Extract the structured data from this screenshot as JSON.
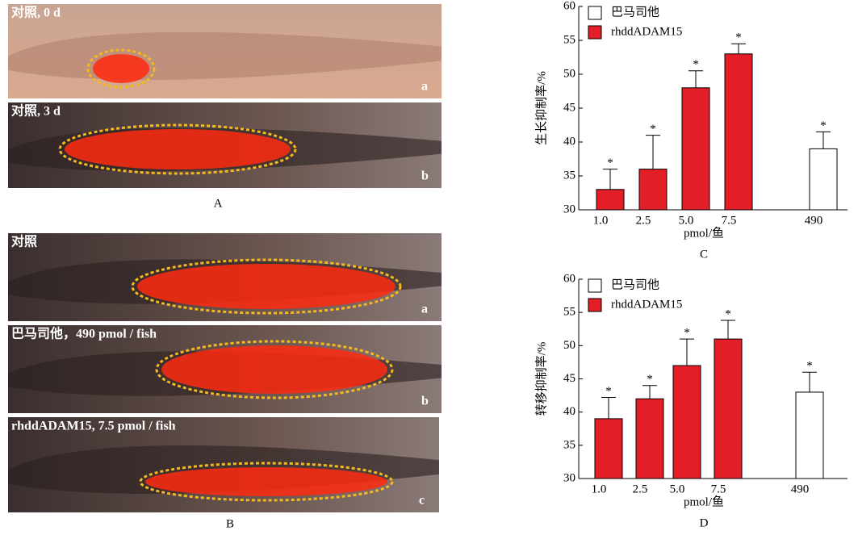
{
  "panels": [
    {
      "label": "A",
      "images": [
        {
          "caption": "对照, 0 d",
          "letter": "a"
        },
        {
          "caption": "对照, 3 d",
          "letter": "b"
        }
      ]
    },
    {
      "label": "B",
      "images": [
        {
          "caption": "对照",
          "letter": "a"
        },
        {
          "caption": "巴马司他，490 pmol / fish",
          "letter": "b"
        },
        {
          "caption": "rhddADAM15, 7.5 pmol / fish",
          "letter": "c"
        }
      ]
    }
  ],
  "chart_data": [
    {
      "type": "bar",
      "panel_label": "C",
      "ylabel": "生长抑制率/%",
      "xlabel": "pmol/鱼",
      "categories": [
        "1.0",
        "2.5",
        "5.0",
        "7.5",
        "490"
      ],
      "series": [
        {
          "name": "巴马司他",
          "color": "#ffffff",
          "values": [
            null,
            null,
            null,
            null,
            39
          ],
          "errors": [
            null,
            null,
            null,
            null,
            2.5
          ],
          "significance": [
            null,
            null,
            null,
            null,
            "*"
          ]
        },
        {
          "name": "rhddADAM15",
          "color": "#e41e26",
          "values": [
            33,
            36,
            48,
            53,
            null
          ],
          "errors": [
            3,
            5,
            2.5,
            1.5,
            null
          ],
          "significance": [
            "*",
            "*",
            "*",
            "*",
            null
          ]
        }
      ],
      "ylim": [
        30,
        60
      ],
      "yticks": [
        30,
        35,
        40,
        45,
        50,
        55,
        60
      ],
      "legend": "upper left"
    },
    {
      "type": "bar",
      "panel_label": "D",
      "ylabel": "转移抑制率/%",
      "xlabel": "pmol/鱼",
      "categories": [
        "1.0",
        "2.5",
        "5.0",
        "7.5",
        "490"
      ],
      "series": [
        {
          "name": "巴马司他",
          "color": "#ffffff",
          "values": [
            null,
            null,
            null,
            null,
            43
          ],
          "errors": [
            null,
            null,
            null,
            null,
            3
          ],
          "significance": [
            null,
            null,
            null,
            null,
            "*"
          ]
        },
        {
          "name": "rhddADAM15",
          "color": "#e41e26",
          "values": [
            39,
            42,
            47,
            51,
            null
          ],
          "errors": [
            3.2,
            2,
            4,
            2.8,
            null
          ],
          "significance": [
            "*",
            "*",
            "*",
            "*",
            null
          ]
        }
      ],
      "ylim": [
        30,
        60
      ],
      "yticks": [
        30,
        35,
        40,
        45,
        50,
        55,
        60
      ],
      "legend": "upper left"
    }
  ]
}
